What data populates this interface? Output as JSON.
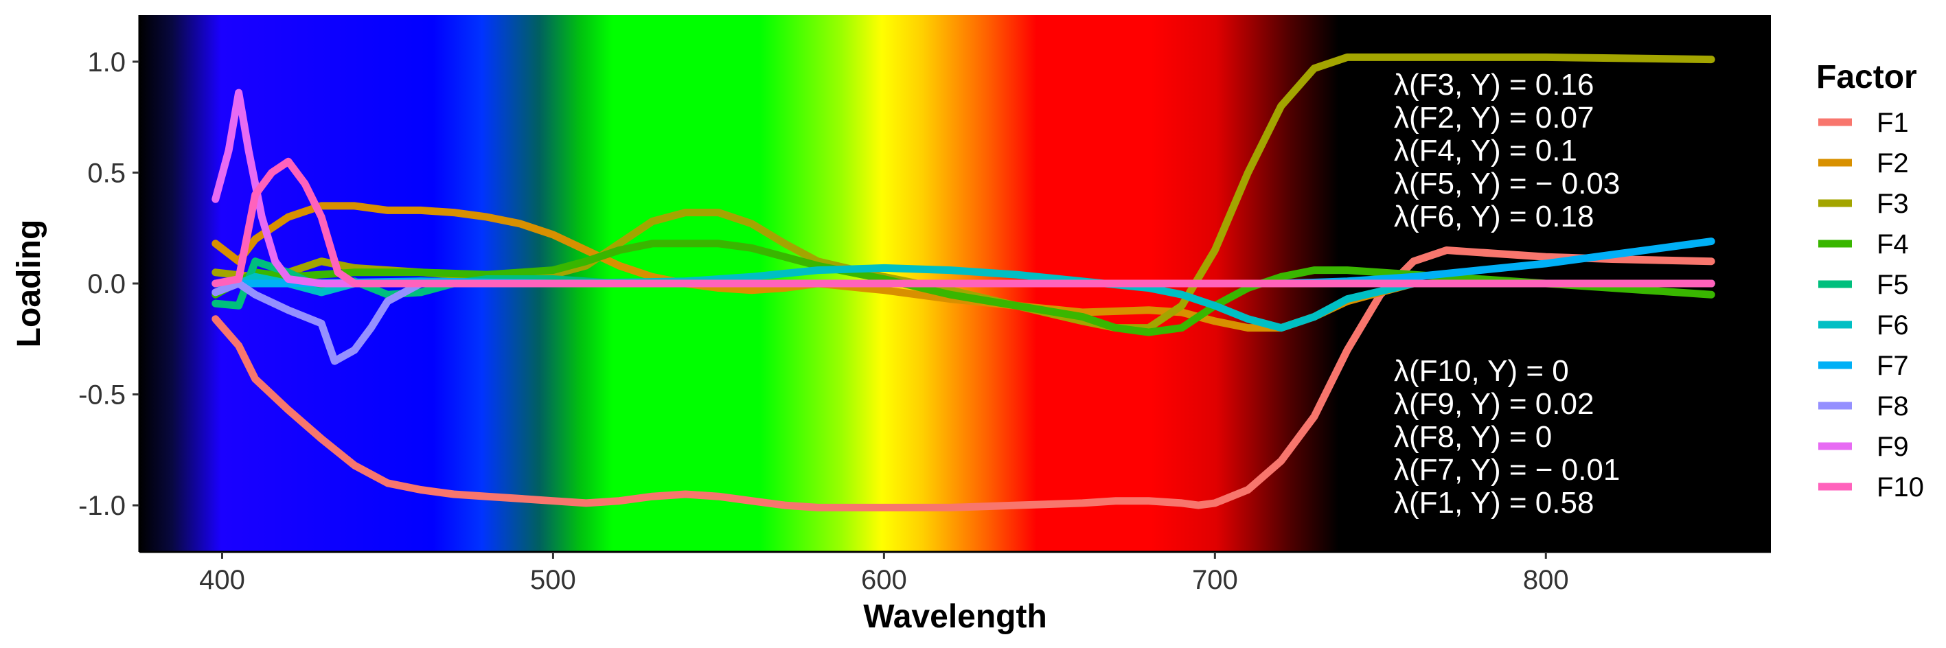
{
  "chart_data": {
    "type": "line",
    "xlabel": "Wavelength",
    "ylabel": "Loading",
    "xlim": [
      375,
      868
    ],
    "ylim": [
      -1.21,
      1.21
    ],
    "xticks": [
      400,
      500,
      600,
      700,
      800
    ],
    "yticks": [
      1.0,
      0.5,
      0.0,
      -0.5,
      -1.0
    ],
    "ytick_labels": [
      "1.0",
      "0.5",
      "0.0",
      "-0.5",
      "-1.0"
    ],
    "grid": false,
    "background": "visible-spectrum gradient (violet to red, black beyond 700)",
    "legend": {
      "title": "Factor",
      "position": "right"
    },
    "series": [
      {
        "name": "F1",
        "color": "#F8766D",
        "x": [
          398,
          405,
          410,
          420,
          430,
          440,
          450,
          460,
          470,
          480,
          490,
          500,
          510,
          520,
          530,
          540,
          550,
          560,
          570,
          580,
          590,
          600,
          620,
          640,
          660,
          670,
          680,
          690,
          695,
          700,
          710,
          720,
          730,
          740,
          750,
          760,
          770,
          780,
          800,
          820,
          850
        ],
        "y": [
          -0.16,
          -0.28,
          -0.43,
          -0.57,
          -0.7,
          -0.82,
          -0.9,
          -0.93,
          -0.95,
          -0.96,
          -0.97,
          -0.98,
          -0.99,
          -0.98,
          -0.96,
          -0.95,
          -0.96,
          -0.98,
          -1.0,
          -1.01,
          -1.01,
          -1.01,
          -1.01,
          -1.0,
          -0.99,
          -0.98,
          -0.98,
          -0.99,
          -1.0,
          -0.99,
          -0.93,
          -0.8,
          -0.6,
          -0.3,
          -0.05,
          0.1,
          0.15,
          0.14,
          0.12,
          0.11,
          0.1
        ]
      },
      {
        "name": "F2",
        "color": "#D89000",
        "x": [
          398,
          405,
          410,
          420,
          430,
          440,
          450,
          460,
          470,
          480,
          490,
          500,
          510,
          520,
          530,
          540,
          550,
          560,
          570,
          580,
          600,
          620,
          640,
          660,
          680,
          690,
          700,
          710,
          720,
          730,
          740,
          760,
          800,
          850
        ],
        "y": [
          0.18,
          0.1,
          0.2,
          0.3,
          0.35,
          0.35,
          0.33,
          0.33,
          0.32,
          0.3,
          0.27,
          0.22,
          0.15,
          0.08,
          0.03,
          0.0,
          -0.02,
          -0.03,
          -0.02,
          0.0,
          -0.03,
          -0.07,
          -0.1,
          -0.13,
          -0.12,
          -0.13,
          -0.17,
          -0.2,
          -0.2,
          -0.15,
          -0.08,
          0.0,
          0.0,
          0.0
        ]
      },
      {
        "name": "F3",
        "color": "#A3A500",
        "x": [
          398,
          410,
          420,
          430,
          440,
          460,
          480,
          500,
          510,
          520,
          530,
          540,
          550,
          560,
          570,
          580,
          600,
          620,
          640,
          660,
          670,
          680,
          690,
          700,
          710,
          720,
          730,
          740,
          760,
          800,
          850
        ],
        "y": [
          0.05,
          0.03,
          0.05,
          0.1,
          0.07,
          0.05,
          0.03,
          0.04,
          0.08,
          0.18,
          0.28,
          0.32,
          0.32,
          0.27,
          0.18,
          0.1,
          0.03,
          -0.03,
          -0.1,
          -0.17,
          -0.2,
          -0.2,
          -0.1,
          0.15,
          0.5,
          0.8,
          0.97,
          1.02,
          1.02,
          1.02,
          1.01
        ]
      },
      {
        "name": "F4",
        "color": "#39B600",
        "x": [
          398,
          410,
          420,
          440,
          460,
          480,
          500,
          510,
          520,
          530,
          540,
          550,
          560,
          570,
          580,
          600,
          620,
          640,
          660,
          670,
          680,
          690,
          700,
          710,
          720,
          730,
          740,
          760,
          800,
          850
        ],
        "y": [
          -0.05,
          0.05,
          0.03,
          0.05,
          0.05,
          0.04,
          0.06,
          0.1,
          0.15,
          0.18,
          0.18,
          0.18,
          0.16,
          0.12,
          0.08,
          0.02,
          -0.05,
          -0.1,
          -0.15,
          -0.2,
          -0.22,
          -0.2,
          -0.1,
          -0.02,
          0.03,
          0.06,
          0.06,
          0.04,
          0.0,
          -0.05
        ]
      },
      {
        "name": "F5",
        "color": "#00BF7D",
        "x": [
          398,
          405,
          410,
          420,
          430,
          440,
          450,
          460,
          470,
          480,
          500,
          520,
          560,
          600,
          640,
          680,
          700,
          720,
          760,
          850
        ],
        "y": [
          -0.09,
          -0.1,
          0.1,
          0.05,
          -0.02,
          0.01,
          -0.05,
          -0.04,
          0.0,
          0.02,
          0.02,
          0.0,
          0.0,
          0.0,
          0.0,
          0.0,
          0.0,
          0.0,
          0.0,
          0.0
        ]
      },
      {
        "name": "F6",
        "color": "#00BFC4",
        "x": [
          398,
          405,
          410,
          420,
          430,
          440,
          460,
          500,
          540,
          560,
          580,
          600,
          620,
          640,
          660,
          680,
          690,
          700,
          710,
          720,
          730,
          740,
          760,
          800,
          850
        ],
        "y": [
          0.0,
          0.0,
          0.03,
          0.0,
          -0.04,
          0.0,
          0.01,
          0.0,
          0.01,
          0.03,
          0.06,
          0.07,
          0.06,
          0.04,
          0.01,
          -0.02,
          -0.05,
          -0.1,
          -0.16,
          -0.2,
          -0.15,
          -0.07,
          0.0,
          0.0,
          0.0
        ]
      },
      {
        "name": "F7",
        "color": "#00B0F6",
        "x": [
          398,
          420,
          460,
          500,
          560,
          600,
          650,
          680,
          700,
          720,
          740,
          760,
          780,
          800,
          820,
          840,
          850
        ],
        "y": [
          0.0,
          0.0,
          0.01,
          0.0,
          0.0,
          0.0,
          0.0,
          0.0,
          0.0,
          0.0,
          0.01,
          0.03,
          0.06,
          0.09,
          0.13,
          0.17,
          0.19
        ]
      },
      {
        "name": "F8",
        "color": "#9590FF",
        "x": [
          398,
          405,
          410,
          420,
          430,
          434,
          440,
          445,
          450,
          460,
          480,
          500,
          600,
          700,
          850
        ],
        "y": [
          -0.04,
          0.0,
          -0.05,
          -0.12,
          -0.18,
          -0.35,
          -0.3,
          -0.2,
          -0.08,
          0.0,
          0.0,
          0.0,
          0.0,
          0.0,
          0.0
        ]
      },
      {
        "name": "F9",
        "color": "#E76BF3",
        "x": [
          398,
          402,
          405,
          408,
          412,
          416,
          420,
          430,
          440,
          460,
          500,
          600,
          700,
          850
        ],
        "y": [
          0.38,
          0.6,
          0.86,
          0.6,
          0.3,
          0.1,
          0.02,
          0.0,
          0.0,
          0.0,
          0.0,
          0.0,
          0.0,
          0.0
        ]
      },
      {
        "name": "F10",
        "color": "#FF62BC",
        "x": [
          398,
          405,
          410,
          415,
          420,
          425,
          430,
          435,
          440,
          460,
          500,
          600,
          700,
          850
        ],
        "y": [
          0.0,
          0.02,
          0.4,
          0.5,
          0.55,
          0.45,
          0.3,
          0.05,
          0.0,
          0.0,
          0.0,
          0.0,
          0.0,
          0.0
        ]
      }
    ],
    "annotations": {
      "top": [
        "λ(F3, Y) = 0.16",
        "λ(F2, Y) = 0.07",
        "λ(F4, Y) = 0.1",
        "λ(F5, Y) = − 0.03",
        "λ(F6, Y) = 0.18"
      ],
      "bottom": [
        "λ(F10, Y) = 0",
        "λ(F9, Y) = 0.02",
        "λ(F8, Y) = 0",
        "λ(F7, Y) = − 0.01",
        "λ(F1, Y) = 0.58"
      ]
    }
  }
}
